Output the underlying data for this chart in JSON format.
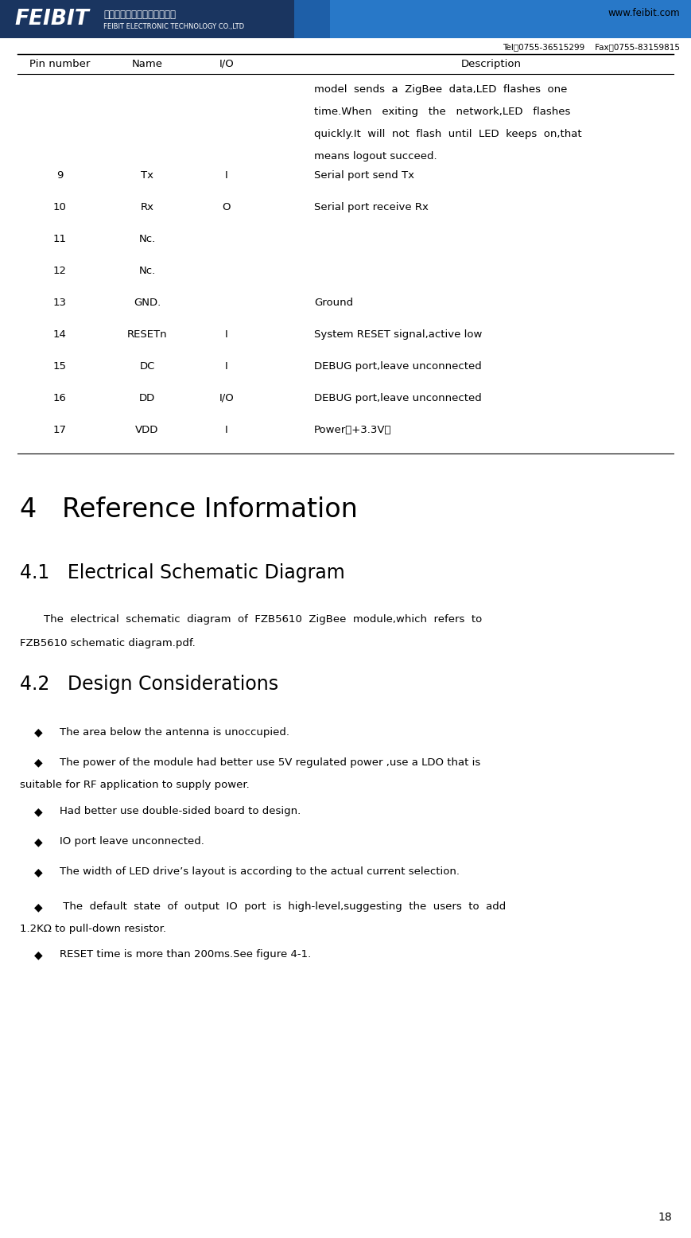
{
  "page_number": "18",
  "header": {
    "logo_text": "FEIBIT",
    "company_cn": "深圳市飞比电子科技有限公司",
    "company_en": "FEIBIT ELECTRONIC TECHNOLOGY CO.,LTD",
    "website": "www.feibit.com",
    "tel": "Tel：0755-36515299    Fax：0755-83159815"
  },
  "table_header": [
    "Pin number",
    "Name",
    "I/O",
    "Description"
  ],
  "table_rows": [
    {
      "pin": "",
      "name": "",
      "io": "",
      "desc_lines": [
        "model  sends  a  ZigBee  data,LED  flashes  one",
        "time.When   exiting   the   network,LED   flashes",
        "quickly.It  will  not  flash  until  LED  keeps  on,that",
        "means logout succeed."
      ]
    },
    {
      "pin": "9",
      "name": "Tx",
      "io": "I",
      "desc_lines": [
        "Serial port send Tx"
      ]
    },
    {
      "pin": "10",
      "name": "Rx",
      "io": "O",
      "desc_lines": [
        "Serial port receive Rx"
      ]
    },
    {
      "pin": "11",
      "name": "Nc.",
      "io": "",
      "desc_lines": []
    },
    {
      "pin": "12",
      "name": "Nc.",
      "io": "",
      "desc_lines": []
    },
    {
      "pin": "13",
      "name": "GND.",
      "io": "",
      "desc_lines": [
        "Ground"
      ]
    },
    {
      "pin": "14",
      "name": "RESETn",
      "io": "I",
      "desc_lines": [
        "System RESET signal,active low"
      ]
    },
    {
      "pin": "15",
      "name": "DC",
      "io": "I",
      "desc_lines": [
        "DEBUG port,leave unconnected"
      ]
    },
    {
      "pin": "16",
      "name": "DD",
      "io": "I/O",
      "desc_lines": [
        "DEBUG port,leave unconnected"
      ]
    },
    {
      "pin": "17",
      "name": "VDD",
      "io": "I",
      "desc_lines": [
        "Power（+3.3V）"
      ]
    }
  ],
  "section4_title": "4   Reference Information",
  "section41_title": "4.1   Electrical Schematic Diagram",
  "section41_line1": "The  electrical  schematic  diagram  of  FZB5610  ZigBee  module,which  refers  to",
  "section41_line2": "FZB5610 schematic diagram.pdf.",
  "section42_title": "4.2   Design Considerations",
  "bullet0": "The area below the antenna is unoccupied.",
  "bullet1a": "The power of the module had better use 5V regulated power ,use a LDO that is",
  "bullet1b": "suitable for RF application to supply power.",
  "bullet2": "Had better use double-sided board to design.",
  "bullet3": "IO port leave unconnected.",
  "bullet4": "The width of LED drive’s layout is according to the actual current selection.",
  "bullet5a": " The  default  state  of  output  IO  port  is  high-level,suggesting  the  users  to  add",
  "bullet5b": "1.2KΩ to pull-down resistor.",
  "bullet6": "RESET time is more than 200ms.See figure 4-1.",
  "header_dark_blue": "#1a3560",
  "header_mid_blue": "#1e5fa8",
  "header_light_blue": "#2878c8",
  "bg_color": "#ffffff",
  "text_color": "#000000"
}
